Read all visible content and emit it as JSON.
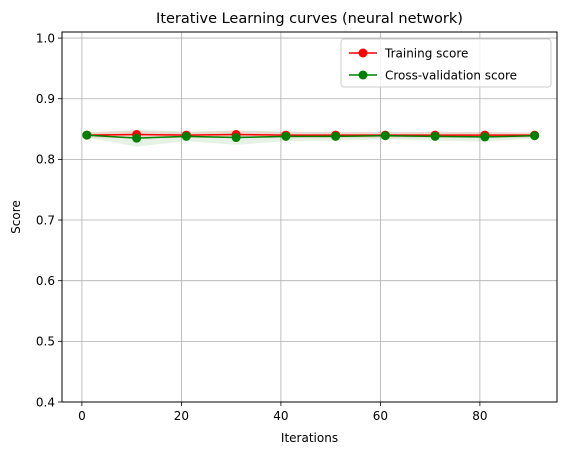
{
  "chart_data": {
    "type": "line",
    "title": "Iterative Learning curves (neural network)",
    "xlabel": "Iterations",
    "ylabel": "Score",
    "xlim": [
      -4,
      95.5
    ],
    "ylim": [
      0.4,
      1.01
    ],
    "xticks": [
      0,
      20,
      40,
      60,
      80
    ],
    "yticks": [
      0.4,
      0.5,
      0.6,
      0.7,
      0.8,
      0.9,
      1.0
    ],
    "xtick_labels": [
      "0",
      "20",
      "40",
      "60",
      "80"
    ],
    "ytick_labels": [
      "0.4",
      "0.5",
      "0.6",
      "0.7",
      "0.8",
      "0.9",
      "1.0"
    ],
    "grid": true,
    "legend_position": "top-right",
    "x": [
      1,
      11,
      21,
      31,
      41,
      51,
      61,
      71,
      81,
      91
    ],
    "series": [
      {
        "name": "Training score",
        "color": "#ff0000",
        "values": [
          0.84,
          0.841,
          0.84,
          0.841,
          0.84,
          0.84,
          0.84,
          0.84,
          0.84,
          0.84
        ],
        "band": [
          0.005,
          0.006,
          0.005,
          0.006,
          0.005,
          0.005,
          0.005,
          0.005,
          0.005,
          0.005
        ]
      },
      {
        "name": "Cross-validation score",
        "color": "#008000",
        "values": [
          0.84,
          0.835,
          0.838,
          0.836,
          0.838,
          0.838,
          0.839,
          0.838,
          0.837,
          0.839
        ],
        "band": [
          0.004,
          0.014,
          0.008,
          0.012,
          0.008,
          0.007,
          0.006,
          0.007,
          0.008,
          0.004
        ]
      }
    ]
  }
}
